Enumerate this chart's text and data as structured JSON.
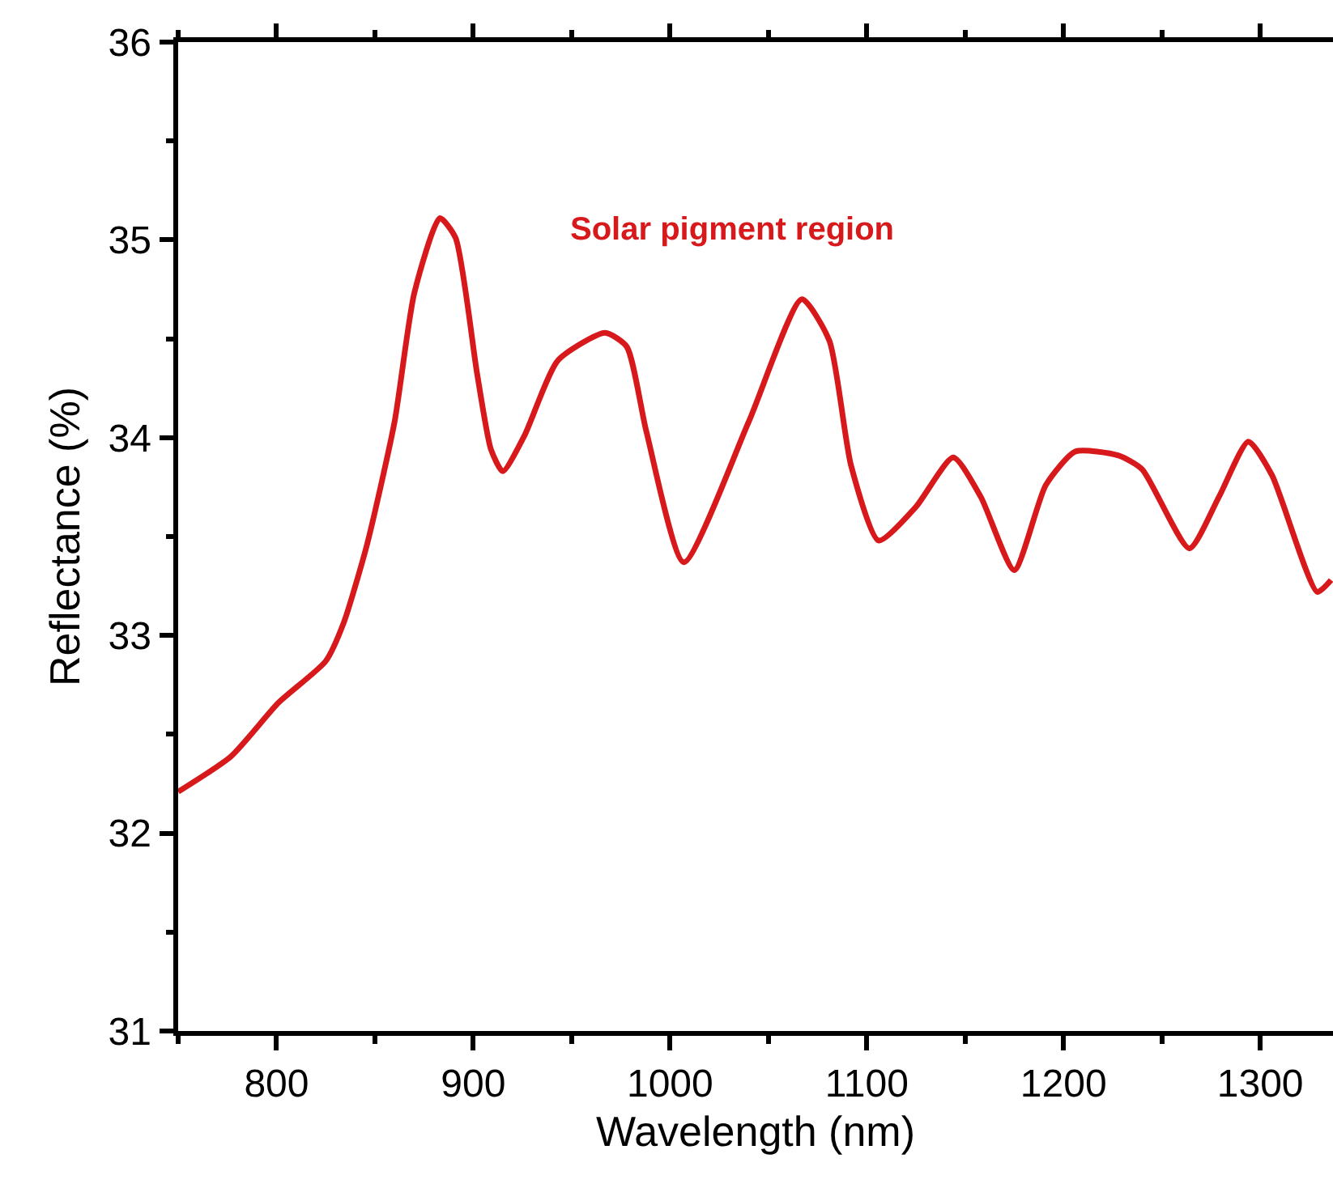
{
  "chart_data": {
    "type": "line",
    "xlabel": "Wavelength (nm)",
    "ylabel": "Reflectance (%)",
    "annotations": [
      "Solar pigment region"
    ],
    "xlim": [
      750,
      1337
    ],
    "xticks": [
      {
        "value": 750,
        "label": null
      },
      800,
      {
        "value": 850,
        "label": null
      },
      900,
      {
        "value": 950,
        "label": null
      },
      1000,
      {
        "value": 1050,
        "label": null
      },
      1100,
      {
        "value": 1150,
        "label": null
      },
      1200,
      {
        "value": 1250,
        "label": null
      },
      1300
    ],
    "ylim": [
      31,
      36
    ],
    "yticks": [
      31,
      {
        "value": 31.5,
        "label": null
      },
      32,
      {
        "value": 32.5,
        "label": null
      },
      33,
      {
        "value": 33.5,
        "label": null
      },
      34,
      {
        "value": 34.5,
        "label": null
      },
      35,
      {
        "value": 35.5,
        "label": null
      },
      36
    ],
    "grid": false,
    "marker": "none",
    "line_style": "solid",
    "series": [
      {
        "color": "#d7191c",
        "x": [
          750,
          777,
          801,
          825,
          834,
          846,
          860,
          870,
          883,
          891,
          902,
          909,
          915,
          926,
          943,
          967,
          978,
          988,
          1007,
          1040,
          1067,
          1081,
          1092,
          1106,
          1125,
          1144,
          1158,
          1175,
          1191,
          1206,
          1228,
          1240,
          1264,
          1279,
          1294,
          1306,
          1329,
          1336
        ],
        "values": [
          32.21,
          32.39,
          32.66,
          32.87,
          33.06,
          33.46,
          34.08,
          34.73,
          35.11,
          35.01,
          34.32,
          33.94,
          33.83,
          34.01,
          34.39,
          34.53,
          34.46,
          34.03,
          33.37,
          34.08,
          34.7,
          34.49,
          33.86,
          33.48,
          33.65,
          33.9,
          33.7,
          33.33,
          33.76,
          33.93,
          33.91,
          33.84,
          33.44,
          33.7,
          33.98,
          33.81,
          33.22,
          33.28
        ]
      }
    ]
  }
}
